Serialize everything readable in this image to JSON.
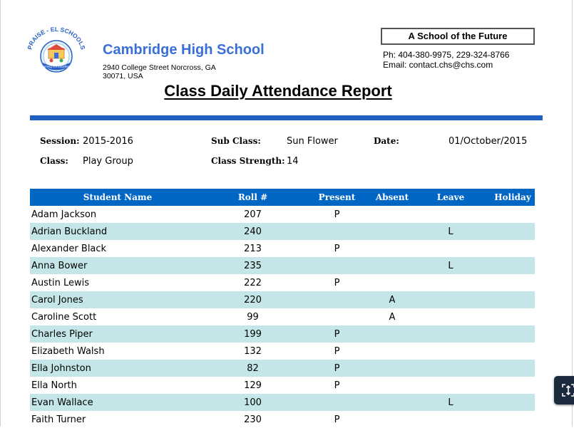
{
  "school": {
    "logo_text": "PRAISE - EL SCHOOLS",
    "logo_ribbon": "Learning For Excellence",
    "name": "Cambridge High School",
    "address_line1": "2940 College Street Norcross, GA",
    "address_line2": "30071, USA",
    "motto": "A School of the Future",
    "phone": "Ph: 404-380-9975, 229-324-8766",
    "email": "Email: contact.chs@chs.com"
  },
  "report": {
    "title": "Class Daily Attendance Report",
    "session_label": "Session:",
    "session_value": "2015-2016",
    "subclass_label": "Sub Class:",
    "subclass_value": "Sun Flower",
    "date_label": "Date:",
    "date_value": "01/October/2015",
    "class_label": "Class:",
    "class_value": "Play Group",
    "strength_label": "Class Strength:",
    "strength_value": "14"
  },
  "table": {
    "headers": [
      "Student Name",
      "Roll #",
      "Present",
      "Absent",
      "Leave",
      "Holiday"
    ],
    "rows": [
      {
        "name": "Adam Jackson",
        "roll": "207",
        "present": "P",
        "absent": "",
        "leave": "",
        "holiday": ""
      },
      {
        "name": "Adrian Buckland",
        "roll": "240",
        "present": "",
        "absent": "",
        "leave": "L",
        "holiday": ""
      },
      {
        "name": "Alexander Black",
        "roll": "213",
        "present": "P",
        "absent": "",
        "leave": "",
        "holiday": ""
      },
      {
        "name": "Anna Bower",
        "roll": "235",
        "present": "",
        "absent": "",
        "leave": "L",
        "holiday": ""
      },
      {
        "name": "Austin Lewis",
        "roll": "222",
        "present": "P",
        "absent": "",
        "leave": "",
        "holiday": ""
      },
      {
        "name": "Carol Jones",
        "roll": "220",
        "present": "",
        "absent": "A",
        "leave": "",
        "holiday": ""
      },
      {
        "name": "Caroline Scott",
        "roll": "99",
        "present": "",
        "absent": "A",
        "leave": "",
        "holiday": ""
      },
      {
        "name": "Charles Piper",
        "roll": "199",
        "present": "P",
        "absent": "",
        "leave": "",
        "holiday": ""
      },
      {
        "name": "Elizabeth Walsh",
        "roll": "132",
        "present": "P",
        "absent": "",
        "leave": "",
        "holiday": ""
      },
      {
        "name": "Ella Johnston",
        "roll": "82",
        "present": "P",
        "absent": "",
        "leave": "",
        "holiday": ""
      },
      {
        "name": "Ella North",
        "roll": "129",
        "present": "P",
        "absent": "",
        "leave": "",
        "holiday": ""
      },
      {
        "name": "Evan Wallace",
        "roll": "100",
        "present": "",
        "absent": "",
        "leave": "L",
        "holiday": ""
      },
      {
        "name": "Faith Turner",
        "roll": "230",
        "present": "P",
        "absent": "",
        "leave": "",
        "holiday": ""
      }
    ]
  },
  "viewer": {
    "fit_icon": "fit-to-screen-icon"
  },
  "colors": {
    "school_name": "#3a6fd8",
    "rule": "#1f5fbf",
    "header_bg": "#0066c4",
    "row_alt": "#c4e6e8"
  }
}
